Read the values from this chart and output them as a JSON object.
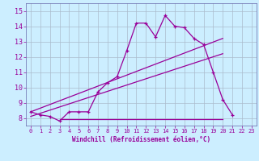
{
  "xlabel": "Windchill (Refroidissement éolien,°C)",
  "background_color": "#cceeff",
  "line_color": "#990099",
  "grid_color": "#aabbcc",
  "xlim": [
    -0.5,
    23.5
  ],
  "ylim": [
    7.5,
    15.5
  ],
  "xticks": [
    0,
    1,
    2,
    3,
    4,
    5,
    6,
    7,
    8,
    9,
    10,
    11,
    12,
    13,
    14,
    15,
    16,
    17,
    18,
    19,
    20,
    21,
    22,
    23
  ],
  "yticks": [
    8,
    9,
    10,
    11,
    12,
    13,
    14,
    15
  ],
  "hours": [
    0,
    1,
    2,
    3,
    4,
    5,
    6,
    7,
    8,
    9,
    10,
    11,
    12,
    13,
    14,
    15,
    16,
    17,
    18,
    19,
    20,
    21
  ],
  "windchill": [
    8.4,
    8.2,
    8.1,
    7.8,
    8.4,
    8.4,
    8.4,
    9.7,
    10.3,
    10.7,
    12.4,
    14.2,
    14.2,
    13.3,
    14.7,
    14.0,
    13.9,
    13.2,
    12.8,
    11.0,
    9.2,
    8.2
  ],
  "trend1_x": [
    0,
    20
  ],
  "trend1_y": [
    8.4,
    13.2
  ],
  "trend2_x": [
    0,
    20
  ],
  "trend2_y": [
    8.1,
    12.2
  ],
  "flat_line_x": [
    3,
    20
  ],
  "flat_line_y": [
    7.9,
    7.9
  ],
  "spine_color": "#6666aa"
}
